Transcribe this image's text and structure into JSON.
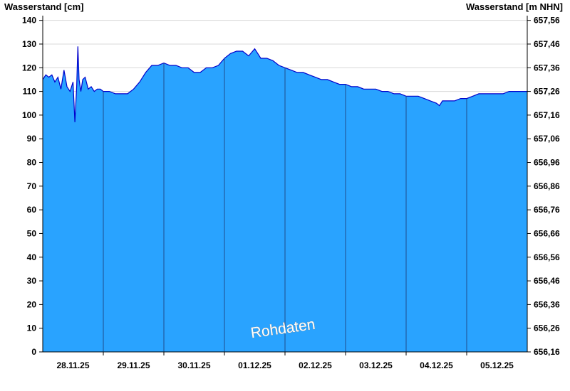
{
  "chart_data": {
    "type": "area",
    "title": "",
    "ylabel_left": "Wasserstand [cm]",
    "ylabel_right": "Wasserstand [m NHN]",
    "watermark": "Rohdaten",
    "ylim": [
      0,
      142
    ],
    "yticks_left": [
      0,
      10,
      20,
      30,
      40,
      50,
      60,
      70,
      80,
      90,
      100,
      110,
      120,
      130,
      140
    ],
    "yticks_right": [
      "656,16",
      "656,26",
      "656,36",
      "656,46",
      "656,56",
      "656,66",
      "656,76",
      "656,86",
      "656,96",
      "657,06",
      "657,16",
      "657,26",
      "657,36",
      "657,46",
      "657,56"
    ],
    "x_labels": [
      "28.11.25",
      "29.11.25",
      "30.11.25",
      "01.12.25",
      "02.12.25",
      "03.12.25",
      "04.12.25",
      "05.12.25"
    ],
    "grid": true,
    "colors": {
      "fill": "#29a3ff",
      "line": "#0000cc",
      "day_separator": "#1f4e8c",
      "grid": "#d8d8d8"
    },
    "series": [
      {
        "values": [
          [
            0.0,
            115
          ],
          [
            0.05,
            117
          ],
          [
            0.1,
            116
          ],
          [
            0.15,
            117
          ],
          [
            0.2,
            114
          ],
          [
            0.25,
            116
          ],
          [
            0.3,
            111
          ],
          [
            0.35,
            119
          ],
          [
            0.4,
            112
          ],
          [
            0.45,
            110
          ],
          [
            0.5,
            114
          ],
          [
            0.53,
            97
          ],
          [
            0.56,
            112
          ],
          [
            0.58,
            129
          ],
          [
            0.6,
            115
          ],
          [
            0.63,
            110
          ],
          [
            0.66,
            115
          ],
          [
            0.7,
            116
          ],
          [
            0.75,
            111
          ],
          [
            0.8,
            112
          ],
          [
            0.85,
            110
          ],
          [
            0.9,
            111
          ],
          [
            0.95,
            111
          ],
          [
            1.0,
            110
          ],
          [
            1.1,
            110
          ],
          [
            1.2,
            109
          ],
          [
            1.3,
            109
          ],
          [
            1.4,
            109
          ],
          [
            1.5,
            111
          ],
          [
            1.6,
            114
          ],
          [
            1.7,
            118
          ],
          [
            1.8,
            121
          ],
          [
            1.9,
            121
          ],
          [
            2.0,
            122
          ],
          [
            2.1,
            121
          ],
          [
            2.2,
            121
          ],
          [
            2.3,
            120
          ],
          [
            2.4,
            120
          ],
          [
            2.5,
            118
          ],
          [
            2.6,
            118
          ],
          [
            2.7,
            120
          ],
          [
            2.8,
            120
          ],
          [
            2.9,
            121
          ],
          [
            3.0,
            124
          ],
          [
            3.1,
            126
          ],
          [
            3.2,
            127
          ],
          [
            3.3,
            127
          ],
          [
            3.4,
            125
          ],
          [
            3.5,
            128
          ],
          [
            3.55,
            126
          ],
          [
            3.6,
            124
          ],
          [
            3.7,
            124
          ],
          [
            3.8,
            123
          ],
          [
            3.9,
            121
          ],
          [
            4.0,
            120
          ],
          [
            4.1,
            119
          ],
          [
            4.2,
            118
          ],
          [
            4.3,
            118
          ],
          [
            4.4,
            117
          ],
          [
            4.5,
            116
          ],
          [
            4.6,
            115
          ],
          [
            4.7,
            115
          ],
          [
            4.8,
            114
          ],
          [
            4.9,
            113
          ],
          [
            5.0,
            113
          ],
          [
            5.1,
            112
          ],
          [
            5.2,
            112
          ],
          [
            5.3,
            111
          ],
          [
            5.4,
            111
          ],
          [
            5.5,
            111
          ],
          [
            5.6,
            110
          ],
          [
            5.7,
            110
          ],
          [
            5.8,
            109
          ],
          [
            5.9,
            109
          ],
          [
            6.0,
            108
          ],
          [
            6.1,
            108
          ],
          [
            6.2,
            108
          ],
          [
            6.3,
            107
          ],
          [
            6.4,
            106
          ],
          [
            6.5,
            105
          ],
          [
            6.55,
            104
          ],
          [
            6.6,
            106
          ],
          [
            6.7,
            106
          ],
          [
            6.8,
            106
          ],
          [
            6.9,
            107
          ],
          [
            7.0,
            107
          ],
          [
            7.1,
            108
          ],
          [
            7.2,
            109
          ],
          [
            7.3,
            109
          ],
          [
            7.4,
            109
          ],
          [
            7.5,
            109
          ],
          [
            7.6,
            109
          ],
          [
            7.7,
            110
          ],
          [
            7.8,
            110
          ],
          [
            7.9,
            110
          ],
          [
            8.0,
            110
          ]
        ]
      }
    ]
  }
}
